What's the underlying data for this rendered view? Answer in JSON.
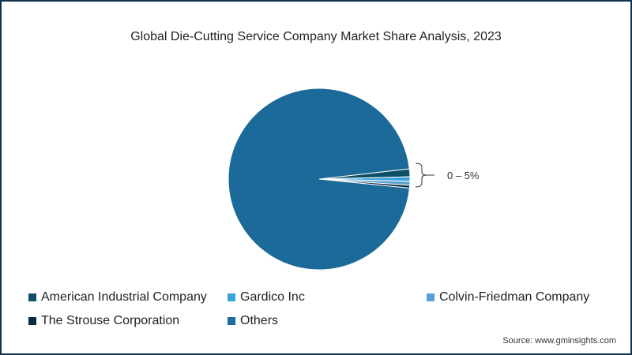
{
  "chart_data": {
    "type": "pie",
    "title": "Global Die-Cutting Service Company Market Share Analysis, 2023",
    "slices": [
      {
        "name": "American Industrial Company",
        "value": 1.4,
        "color": "#0f4f66"
      },
      {
        "name": "Gardico Inc",
        "value": 0.8,
        "color": "#3aa3dc"
      },
      {
        "name": "Colvin-Friedman Company",
        "value": 0.7,
        "color": "#5b9fd2"
      },
      {
        "name": "The Strouse Corporation",
        "value": 0.5,
        "color": "#0b2c3e"
      },
      {
        "name": "Others",
        "value": 96.6,
        "color": "#1b6a99"
      }
    ],
    "annotation": "0 – 5%",
    "legend_position": "bottom"
  },
  "source": "Source: www.gminsights.com"
}
